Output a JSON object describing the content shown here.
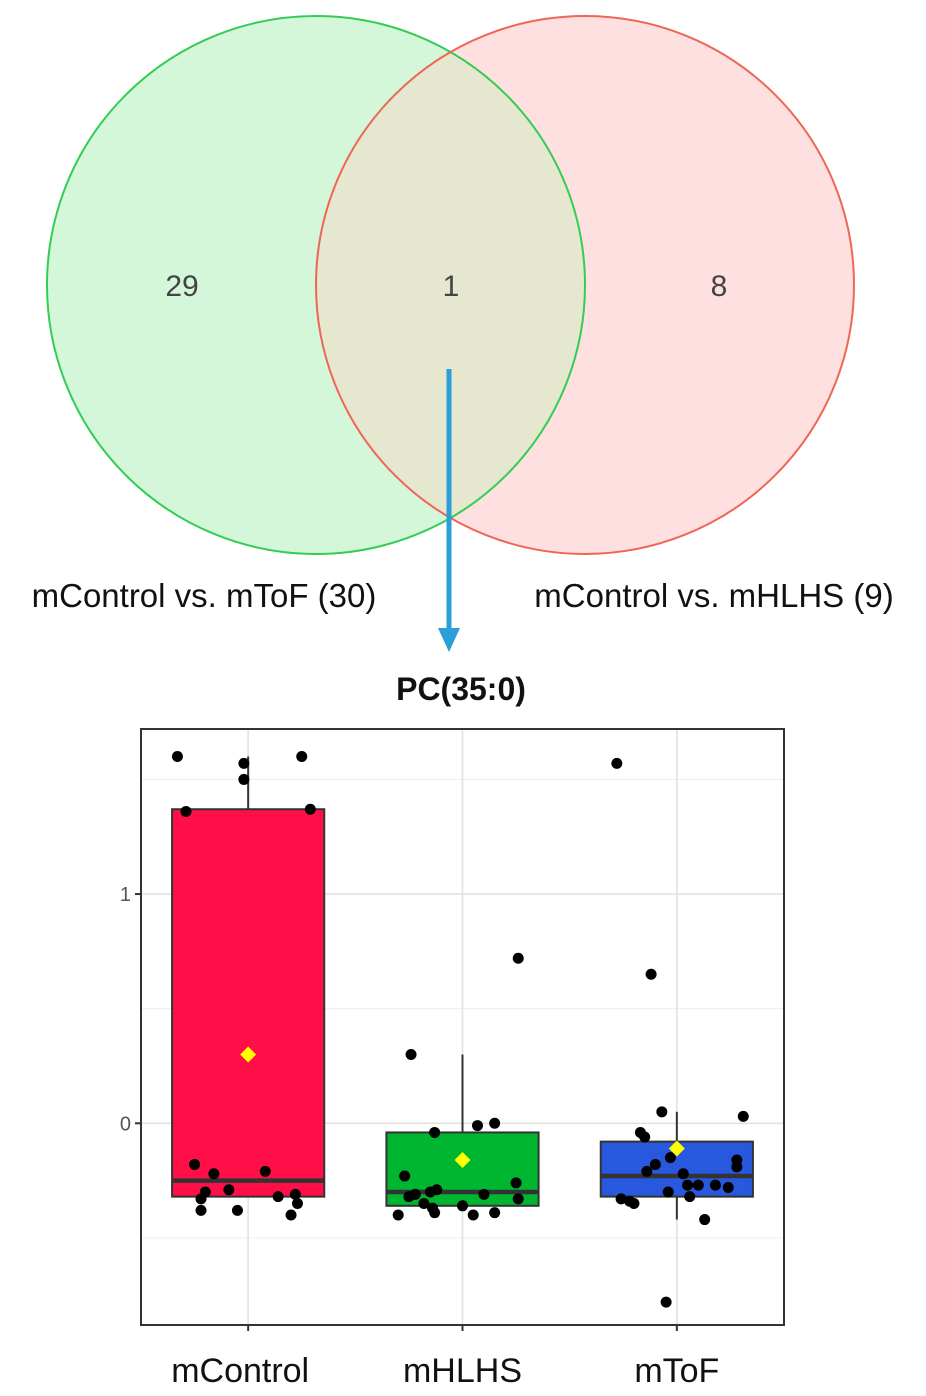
{
  "venn": {
    "sets": [
      {
        "label": "mControl vs. mToF (30)",
        "color": "#33cc55",
        "fill": "#d4f7d9"
      },
      {
        "label": "mControl vs. mHLHS (9)",
        "color": "#ee6655",
        "fill": "#ffe0e0"
      }
    ],
    "counts": {
      "left_only": "29",
      "intersection": "1",
      "right_only": "8"
    },
    "overlap_fill": "#e6e7cf",
    "arrow_color": "#2a9fd8"
  },
  "chart_data": {
    "type": "box",
    "title": "PC(35:0)",
    "xlabel": "",
    "ylabel": "",
    "categories": [
      "mControl",
      "mHLHS",
      "mToF"
    ],
    "ylim": [
      -0.88,
      1.72
    ],
    "yticks": [
      {
        "value": 0,
        "label": "0"
      },
      {
        "value": 1,
        "label": "1"
      }
    ],
    "minor_gridlines": [
      -0.5,
      0.5,
      1.5
    ],
    "grid": true,
    "box_colors": [
      "#ff0e47",
      "#00b52f",
      "#2758dd"
    ],
    "mean_marker_color": "#ffff00",
    "groups": [
      {
        "name": "mControl",
        "q1": -0.32,
        "median": -0.25,
        "q3": 1.37,
        "whisker_low": -0.32,
        "whisker_high": 1.6,
        "mean": 0.3,
        "points": [
          [
            -0.33,
            1.6
          ],
          [
            -0.02,
            1.57
          ],
          [
            -0.02,
            1.5
          ],
          [
            0.25,
            1.6
          ],
          [
            0.29,
            1.37
          ],
          [
            -0.29,
            1.36
          ],
          [
            -0.25,
            -0.18
          ],
          [
            -0.22,
            -0.33
          ],
          [
            -0.2,
            -0.3
          ],
          [
            -0.16,
            -0.22
          ],
          [
            -0.09,
            -0.29
          ],
          [
            -0.05,
            -0.38
          ],
          [
            -0.22,
            -0.38
          ],
          [
            0.08,
            -0.21
          ],
          [
            0.14,
            -0.32
          ],
          [
            0.2,
            -0.4
          ],
          [
            0.23,
            -0.35
          ],
          [
            0.22,
            -0.31
          ]
        ]
      },
      {
        "name": "mHLHS",
        "q1": -0.36,
        "median": -0.3,
        "q3": -0.04,
        "whisker_low": -0.36,
        "whisker_high": 0.3,
        "mean": -0.16,
        "points": [
          [
            0.26,
            0.72
          ],
          [
            -0.24,
            0.3
          ],
          [
            -0.13,
            -0.04
          ],
          [
            0.07,
            -0.01
          ],
          [
            0.15,
            0.0
          ],
          [
            -0.27,
            -0.23
          ],
          [
            -0.25,
            -0.32
          ],
          [
            -0.22,
            -0.31
          ],
          [
            -0.18,
            -0.35
          ],
          [
            -0.15,
            -0.3
          ],
          [
            -0.12,
            -0.29
          ],
          [
            -0.14,
            -0.37
          ],
          [
            -0.13,
            -0.39
          ],
          [
            0.0,
            -0.36
          ],
          [
            0.05,
            -0.4
          ],
          [
            0.1,
            -0.31
          ],
          [
            0.15,
            -0.39
          ],
          [
            0.25,
            -0.26
          ],
          [
            -0.3,
            -0.4
          ],
          [
            0.26,
            -0.33
          ]
        ]
      },
      {
        "name": "mToF",
        "q1": -0.32,
        "median": -0.23,
        "q3": -0.08,
        "whisker_low": -0.42,
        "whisker_high": 0.05,
        "mean": -0.11,
        "points": [
          [
            -0.28,
            1.57
          ],
          [
            -0.12,
            0.65
          ],
          [
            -0.07,
            0.05
          ],
          [
            0.31,
            0.03
          ],
          [
            -0.17,
            -0.04
          ],
          [
            -0.15,
            -0.06
          ],
          [
            -0.14,
            -0.21
          ],
          [
            -0.1,
            -0.18
          ],
          [
            -0.04,
            -0.3
          ],
          [
            -0.03,
            -0.15
          ],
          [
            0.03,
            -0.22
          ],
          [
            0.05,
            -0.27
          ],
          [
            0.06,
            -0.32
          ],
          [
            0.1,
            -0.27
          ],
          [
            0.13,
            -0.42
          ],
          [
            0.18,
            -0.27
          ],
          [
            0.24,
            -0.28
          ],
          [
            0.28,
            -0.19
          ],
          [
            0.28,
            -0.16
          ],
          [
            -0.26,
            -0.33
          ],
          [
            -0.22,
            -0.34
          ],
          [
            -0.2,
            -0.35
          ],
          [
            -0.05,
            -0.78
          ]
        ]
      }
    ]
  }
}
